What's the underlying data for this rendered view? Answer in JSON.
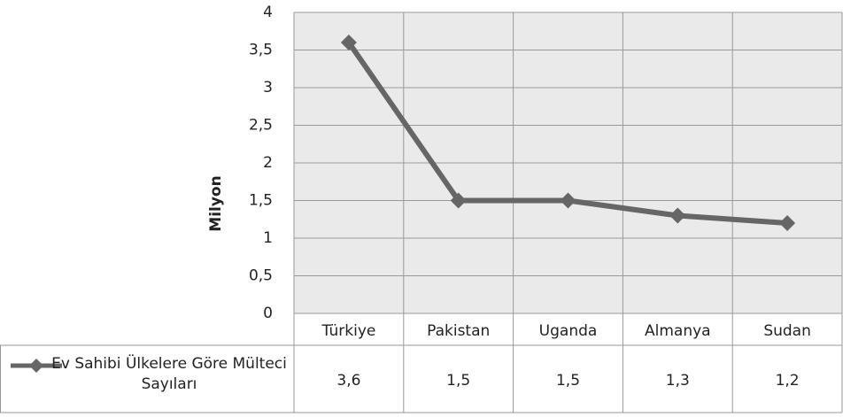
{
  "chart_data": {
    "type": "line",
    "y_label": "Milyon",
    "categories": [
      "Türkiye",
      "Pakistan",
      "Uganda",
      "Almanya",
      "Sudan"
    ],
    "series": [
      {
        "name": "Ev Sahibi Ülkelere Göre Mülteci Sayıları",
        "color": "#666666",
        "values": [
          3.6,
          1.5,
          1.5,
          1.3,
          1.2
        ],
        "value_labels": [
          "3,6",
          "1,5",
          "1,5",
          "1,3",
          "1,2"
        ]
      }
    ],
    "ylim": [
      0,
      4
    ],
    "yticks": [
      0,
      {
        "value": 0.5,
        "label": "0,5"
      },
      1,
      {
        "value": 1.5,
        "label": "1,5"
      },
      2,
      {
        "value": 2.5,
        "label": "2,5"
      },
      3,
      {
        "value": 3.5,
        "label": "3,5"
      },
      4
    ],
    "grid": true
  }
}
